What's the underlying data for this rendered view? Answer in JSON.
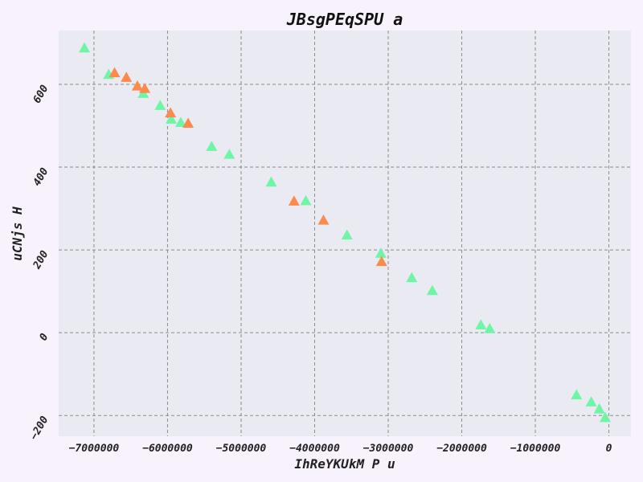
{
  "chart_data": {
    "type": "scatter",
    "title": "JBsgPEqSPU a",
    "xlabel": "IhReYKUkM P u",
    "ylabel": "uCNjs H",
    "xlim": [
      -7480000,
      300000
    ],
    "ylim": [
      -250,
      730
    ],
    "x_ticks": [
      -7000000,
      -6000000,
      -5000000,
      -4000000,
      -3000000,
      -2000000,
      -1000000,
      0
    ],
    "x_tick_labels": [
      "−7000000",
      "−6000000",
      "−5000000",
      "−4000000",
      "−3000000",
      "−2000000",
      "−1000000",
      "0"
    ],
    "y_ticks": [
      -200,
      0,
      200,
      400,
      600
    ],
    "y_tick_labels": [
      "−200",
      "0",
      "200",
      "400",
      "600"
    ],
    "grid": true,
    "background": "#eaeaf2",
    "marker": "triangle",
    "series": [
      {
        "color": "#6ef5a6",
        "points": [
          {
            "x": -7130000,
            "y": 688
          },
          {
            "x": -6800000,
            "y": 624
          },
          {
            "x": -6330000,
            "y": 578
          },
          {
            "x": -6100000,
            "y": 549
          },
          {
            "x": -5950000,
            "y": 516
          },
          {
            "x": -5820000,
            "y": 508
          },
          {
            "x": -5400000,
            "y": 450
          },
          {
            "x": -5160000,
            "y": 431
          },
          {
            "x": -4590000,
            "y": 364
          },
          {
            "x": -4120000,
            "y": 319
          },
          {
            "x": -3560000,
            "y": 236
          },
          {
            "x": -3100000,
            "y": 192
          },
          {
            "x": -2680000,
            "y": 133
          },
          {
            "x": -2400000,
            "y": 102
          },
          {
            "x": -1740000,
            "y": 19
          },
          {
            "x": -1620000,
            "y": 10
          },
          {
            "x": -440000,
            "y": -150
          },
          {
            "x": -240000,
            "y": -167
          },
          {
            "x": -130000,
            "y": -184
          },
          {
            "x": -50000,
            "y": -205
          }
        ]
      },
      {
        "color": "#fb8b4c",
        "points": [
          {
            "x": -6720000,
            "y": 628
          },
          {
            "x": -6560000,
            "y": 617
          },
          {
            "x": -6410000,
            "y": 596
          },
          {
            "x": -6310000,
            "y": 590
          },
          {
            "x": -5960000,
            "y": 531
          },
          {
            "x": -5720000,
            "y": 506
          },
          {
            "x": -4280000,
            "y": 318
          },
          {
            "x": -3880000,
            "y": 272
          },
          {
            "x": -3090000,
            "y": 172
          }
        ]
      }
    ]
  }
}
